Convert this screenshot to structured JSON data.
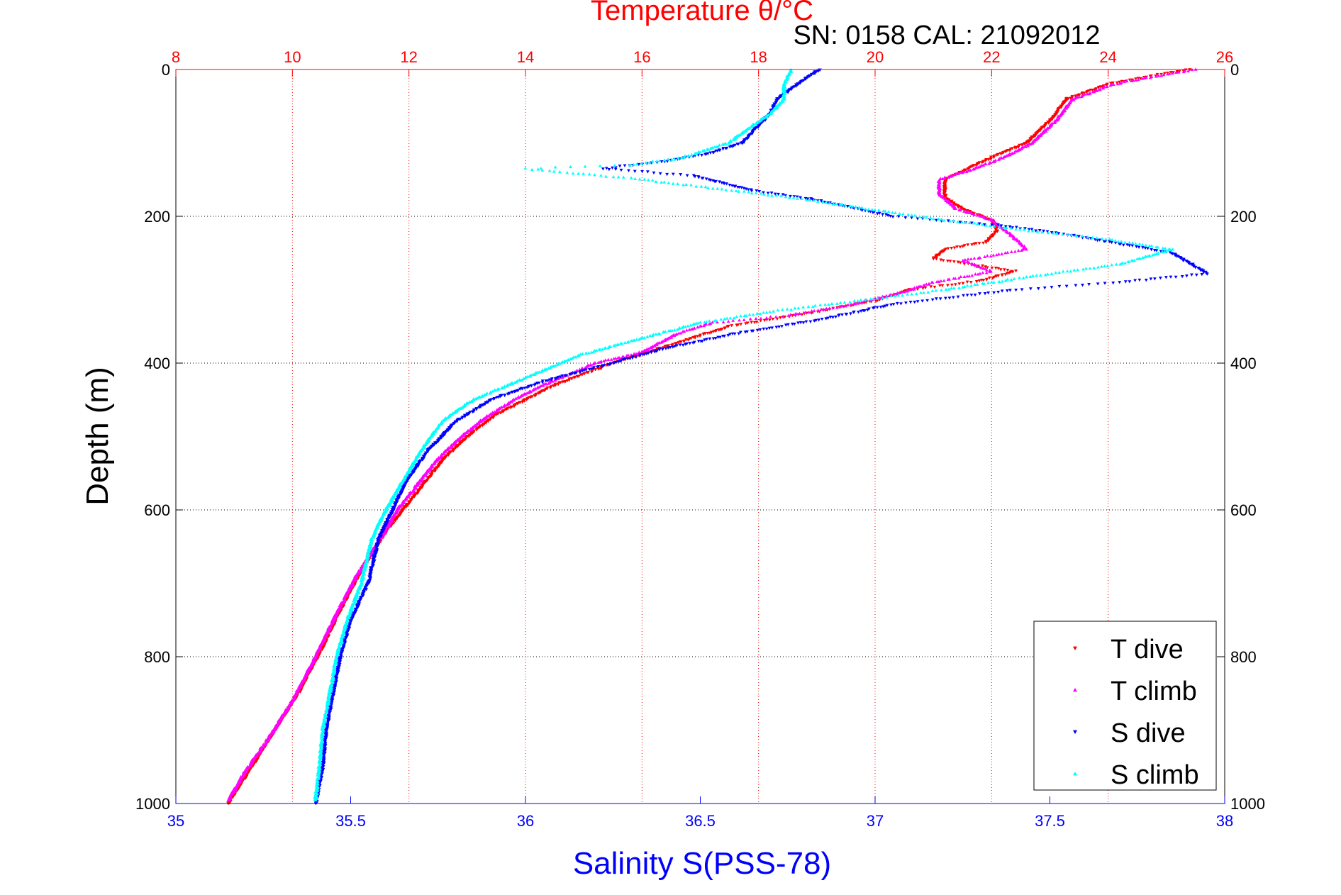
{
  "chart_data": {
    "type": "scatter",
    "title_top": "Temperature θ/°C",
    "subtitle": "SN: 0158  CAL: 21092012",
    "ylabel": "Depth (m)",
    "xlabel_bottom": "Salinity S(PSS-78)",
    "axes": {
      "depth": {
        "range": [
          0,
          1000
        ],
        "ticks": [
          "0",
          "200",
          "400",
          "600",
          "800",
          "1000"
        ],
        "reversed": true
      },
      "salinity": {
        "range": [
          35,
          38
        ],
        "ticks": [
          "35",
          "35.5",
          "36",
          "36.5",
          "37",
          "37.5",
          "38"
        ],
        "color": "#0000ff"
      },
      "temperature": {
        "range": [
          8,
          26
        ],
        "ticks": [
          "8",
          "10",
          "12",
          "14",
          "16",
          "18",
          "20",
          "22",
          "24",
          "26"
        ],
        "color": "#ff0000"
      }
    },
    "grid": true,
    "legend_position": "bottom-right",
    "series": [
      {
        "name": "T dive",
        "axis": "temperature",
        "color": "#ff0000",
        "marker": "down-triangle",
        "points": [
          [
            25.4,
            0
          ],
          [
            24.8,
            8
          ],
          [
            24.0,
            20
          ],
          [
            23.3,
            40
          ],
          [
            23.0,
            70
          ],
          [
            22.6,
            100
          ],
          [
            22.0,
            120
          ],
          [
            21.6,
            135
          ],
          [
            21.2,
            150
          ],
          [
            21.2,
            175
          ],
          [
            21.5,
            190
          ],
          [
            22.0,
            205
          ],
          [
            22.1,
            220
          ],
          [
            21.9,
            235
          ],
          [
            21.2,
            245
          ],
          [
            21.0,
            258
          ],
          [
            21.6,
            265
          ],
          [
            22.4,
            275
          ],
          [
            21.8,
            288
          ],
          [
            20.6,
            300
          ],
          [
            20.0,
            315
          ],
          [
            19.0,
            330
          ],
          [
            17.5,
            350
          ],
          [
            16.5,
            375
          ],
          [
            15.5,
            400
          ],
          [
            14.5,
            430
          ],
          [
            14.0,
            450
          ],
          [
            13.5,
            470
          ],
          [
            13.0,
            500
          ],
          [
            12.6,
            530
          ],
          [
            12.3,
            560
          ],
          [
            11.9,
            600
          ],
          [
            11.6,
            630
          ],
          [
            11.2,
            680
          ],
          [
            10.8,
            740
          ],
          [
            10.5,
            790
          ],
          [
            10.1,
            850
          ],
          [
            9.7,
            900
          ],
          [
            9.3,
            950
          ],
          [
            8.9,
            1000
          ]
        ]
      },
      {
        "name": "T climb",
        "axis": "temperature",
        "color": "#ff00ff",
        "marker": "up-triangle",
        "points": [
          [
            25.5,
            0
          ],
          [
            24.9,
            8
          ],
          [
            24.1,
            20
          ],
          [
            23.4,
            40
          ],
          [
            23.1,
            70
          ],
          [
            22.7,
            100
          ],
          [
            22.2,
            120
          ],
          [
            21.7,
            135
          ],
          [
            21.1,
            150
          ],
          [
            21.1,
            170
          ],
          [
            21.4,
            190
          ],
          [
            22.0,
            205
          ],
          [
            22.4,
            230
          ],
          [
            22.6,
            245
          ],
          [
            21.5,
            260
          ],
          [
            22.0,
            275
          ],
          [
            21.0,
            290
          ],
          [
            20.4,
            305
          ],
          [
            19.6,
            320
          ],
          [
            18.5,
            335
          ],
          [
            17.2,
            345
          ],
          [
            16.6,
            360
          ],
          [
            16.0,
            385
          ],
          [
            15.2,
            400
          ],
          [
            14.3,
            430
          ],
          [
            13.8,
            450
          ],
          [
            13.3,
            475
          ],
          [
            12.9,
            500
          ],
          [
            12.5,
            530
          ],
          [
            12.2,
            560
          ],
          [
            11.8,
            600
          ],
          [
            11.5,
            640
          ],
          [
            11.1,
            690
          ],
          [
            10.7,
            750
          ],
          [
            10.4,
            800
          ],
          [
            10.0,
            860
          ],
          [
            9.6,
            910
          ],
          [
            9.2,
            955
          ],
          [
            8.9,
            995
          ]
        ]
      },
      {
        "name": "S dive",
        "axis": "salinity",
        "color": "#0000ff",
        "marker": "down-triangle",
        "points": [
          [
            36.84,
            0
          ],
          [
            36.78,
            20
          ],
          [
            36.72,
            40
          ],
          [
            36.7,
            60
          ],
          [
            36.66,
            80
          ],
          [
            36.62,
            100
          ],
          [
            36.52,
            115
          ],
          [
            36.4,
            125
          ],
          [
            36.22,
            135
          ],
          [
            36.48,
            145
          ],
          [
            36.65,
            165
          ],
          [
            36.8,
            175
          ],
          [
            36.95,
            190
          ],
          [
            37.05,
            200
          ],
          [
            37.35,
            212
          ],
          [
            37.55,
            225
          ],
          [
            37.85,
            250
          ],
          [
            37.95,
            278
          ],
          [
            37.7,
            290
          ],
          [
            37.4,
            300
          ],
          [
            37.05,
            320
          ],
          [
            36.85,
            340
          ],
          [
            36.6,
            360
          ],
          [
            36.4,
            380
          ],
          [
            36.25,
            400
          ],
          [
            36.05,
            425
          ],
          [
            35.9,
            450
          ],
          [
            35.8,
            480
          ],
          [
            35.72,
            520
          ],
          [
            35.66,
            560
          ],
          [
            35.62,
            600
          ],
          [
            35.58,
            640
          ],
          [
            35.55,
            700
          ],
          [
            35.5,
            750
          ],
          [
            35.47,
            800
          ],
          [
            35.45,
            850
          ],
          [
            35.43,
            900
          ],
          [
            35.42,
            950
          ],
          [
            35.4,
            1000
          ]
        ]
      },
      {
        "name": "S climb",
        "axis": "salinity",
        "color": "#00ffff",
        "marker": "up-triangle",
        "points": [
          [
            36.76,
            0
          ],
          [
            36.74,
            20
          ],
          [
            36.74,
            40
          ],
          [
            36.7,
            60
          ],
          [
            36.64,
            80
          ],
          [
            36.58,
            100
          ],
          [
            36.45,
            120
          ],
          [
            36.3,
            130
          ],
          [
            36.0,
            135
          ],
          [
            36.3,
            148
          ],
          [
            36.6,
            165
          ],
          [
            36.85,
            180
          ],
          [
            37.05,
            195
          ],
          [
            37.2,
            205
          ],
          [
            37.45,
            220
          ],
          [
            37.65,
            230
          ],
          [
            37.85,
            245
          ],
          [
            37.7,
            265
          ],
          [
            37.4,
            285
          ],
          [
            37.2,
            300
          ],
          [
            36.95,
            315
          ],
          [
            36.7,
            330
          ],
          [
            36.5,
            345
          ],
          [
            36.3,
            370
          ],
          [
            36.15,
            390
          ],
          [
            36.0,
            420
          ],
          [
            35.85,
            450
          ],
          [
            35.76,
            480
          ],
          [
            35.7,
            520
          ],
          [
            35.65,
            560
          ],
          [
            35.6,
            600
          ],
          [
            35.56,
            640
          ],
          [
            35.53,
            700
          ],
          [
            35.49,
            750
          ],
          [
            35.46,
            800
          ],
          [
            35.44,
            850
          ],
          [
            35.42,
            900
          ],
          [
            35.41,
            950
          ],
          [
            35.4,
            995
          ]
        ]
      }
    ]
  }
}
